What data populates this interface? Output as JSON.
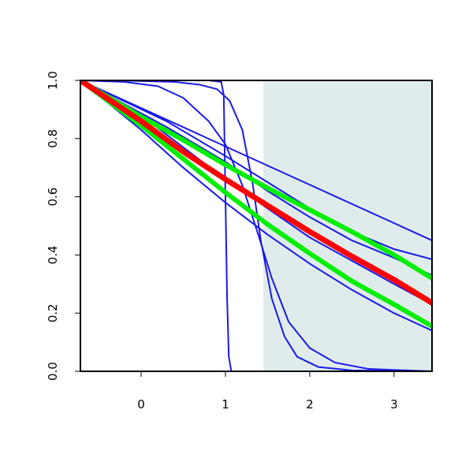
{
  "chart_data": {
    "type": "line",
    "title": "",
    "xlabel": "",
    "ylabel": "",
    "xlim": [
      -0.72,
      3.45
    ],
    "ylim": [
      0,
      1
    ],
    "x_ticks": [
      0,
      1,
      2,
      3
    ],
    "x_tick_labels": [
      "0",
      "1",
      "2",
      "3"
    ],
    "y_ticks": [
      0,
      0.2,
      0.4,
      0.6,
      0.8,
      1
    ],
    "y_tick_labels": [
      "0.0",
      "0.2",
      "0.4",
      "0.6",
      "0.8",
      "1.0"
    ],
    "grid": false,
    "legend": "none",
    "shaded_region": {
      "x_from": 1.45,
      "x_to": 3.45,
      "color": "#e0ecec"
    },
    "colors": {
      "blue": "#1a1ae6",
      "red": "#ff0000",
      "green": "#00ee00",
      "axis": "#000000"
    },
    "series": [
      {
        "color": "#1a1ae6",
        "width": 2,
        "points": [
          [
            -0.72,
            1.0
          ],
          [
            -0.6,
            1.0
          ],
          [
            0.8,
            1.0
          ],
          [
            0.95,
            0.995
          ],
          [
            0.98,
            0.95
          ],
          [
            1.0,
            0.6
          ],
          [
            1.02,
            0.25
          ],
          [
            1.04,
            0.05
          ],
          [
            1.07,
            0.0
          ],
          [
            3.45,
            0.0
          ]
        ]
      },
      {
        "color": "#1a1ae6",
        "width": 2,
        "points": [
          [
            -0.72,
            1.0
          ],
          [
            -0.3,
            1.0
          ],
          [
            0.4,
            0.995
          ],
          [
            0.7,
            0.985
          ],
          [
            0.9,
            0.97
          ],
          [
            1.05,
            0.93
          ],
          [
            1.2,
            0.83
          ],
          [
            1.32,
            0.65
          ],
          [
            1.42,
            0.45
          ],
          [
            1.55,
            0.25
          ],
          [
            1.7,
            0.12
          ],
          [
            1.85,
            0.05
          ],
          [
            2.1,
            0.015
          ],
          [
            2.5,
            0.003
          ],
          [
            3.45,
            0.0
          ]
        ]
      },
      {
        "color": "#1a1ae6",
        "width": 2,
        "points": [
          [
            -0.72,
            1.0
          ],
          [
            -0.2,
            0.995
          ],
          [
            0.2,
            0.98
          ],
          [
            0.5,
            0.94
          ],
          [
            0.8,
            0.86
          ],
          [
            1.0,
            0.78
          ],
          [
            1.2,
            0.64
          ],
          [
            1.4,
            0.46
          ],
          [
            1.55,
            0.32
          ],
          [
            1.75,
            0.17
          ],
          [
            2.0,
            0.08
          ],
          [
            2.3,
            0.03
          ],
          [
            2.7,
            0.008
          ],
          [
            3.45,
            0.0
          ]
        ]
      },
      {
        "color": "#1a1ae6",
        "width": 2,
        "points": [
          [
            -0.72,
            1.0
          ],
          [
            3.45,
            0.45
          ]
        ]
      },
      {
        "color": "#1a1ae6",
        "width": 2,
        "points": [
          [
            -0.72,
            1.0
          ],
          [
            0.3,
            0.86
          ],
          [
            1.0,
            0.74
          ],
          [
            1.5,
            0.65
          ],
          [
            2.0,
            0.56
          ],
          [
            2.5,
            0.48
          ],
          [
            3.0,
            0.42
          ],
          [
            3.45,
            0.385
          ]
        ]
      },
      {
        "color": "#1a1ae6",
        "width": 2,
        "points": [
          [
            -0.72,
            1.0
          ],
          [
            0.3,
            0.84
          ],
          [
            1.0,
            0.72
          ],
          [
            1.5,
            0.62
          ],
          [
            2.0,
            0.53
          ],
          [
            2.5,
            0.45
          ],
          [
            3.0,
            0.39
          ],
          [
            3.45,
            0.33
          ]
        ]
      },
      {
        "color": "#1a1ae6",
        "width": 2,
        "points": [
          [
            -0.72,
            1.0
          ],
          [
            0.0,
            0.88
          ],
          [
            0.5,
            0.77
          ],
          [
            1.0,
            0.66
          ],
          [
            1.5,
            0.56
          ],
          [
            2.0,
            0.46
          ],
          [
            2.5,
            0.38
          ],
          [
            3.0,
            0.3
          ],
          [
            3.45,
            0.23
          ]
        ]
      },
      {
        "color": "#1a1ae6",
        "width": 2,
        "points": [
          [
            -0.72,
            1.0
          ],
          [
            0.0,
            0.83
          ],
          [
            0.5,
            0.7
          ],
          [
            1.0,
            0.58
          ],
          [
            1.5,
            0.47
          ],
          [
            2.0,
            0.37
          ],
          [
            2.5,
            0.28
          ],
          [
            3.0,
            0.2
          ],
          [
            3.45,
            0.14
          ]
        ]
      },
      {
        "color": "#00ee00",
        "width": 6,
        "points": [
          [
            -0.72,
            1.0
          ],
          [
            0.0,
            0.875
          ],
          [
            0.5,
            0.795
          ],
          [
            1.0,
            0.71
          ],
          [
            1.5,
            0.63
          ],
          [
            2.0,
            0.555
          ],
          [
            2.5,
            0.48
          ],
          [
            3.0,
            0.4
          ],
          [
            3.45,
            0.32
          ]
        ]
      },
      {
        "color": "#00ee00",
        "width": 6,
        "points": [
          [
            -0.72,
            1.0
          ],
          [
            0.0,
            0.845
          ],
          [
            0.5,
            0.73
          ],
          [
            1.0,
            0.615
          ],
          [
            1.5,
            0.505
          ],
          [
            2.0,
            0.405
          ],
          [
            2.5,
            0.31
          ],
          [
            3.0,
            0.23
          ],
          [
            3.45,
            0.155
          ]
        ]
      },
      {
        "color": "#ff0000",
        "width": 7,
        "points": [
          [
            -0.72,
            1.0
          ],
          [
            0.0,
            0.86
          ],
          [
            0.5,
            0.755
          ],
          [
            1.0,
            0.66
          ],
          [
            1.5,
            0.57
          ],
          [
            2.0,
            0.48
          ],
          [
            2.5,
            0.395
          ],
          [
            3.0,
            0.315
          ],
          [
            3.45,
            0.235
          ]
        ]
      }
    ]
  }
}
